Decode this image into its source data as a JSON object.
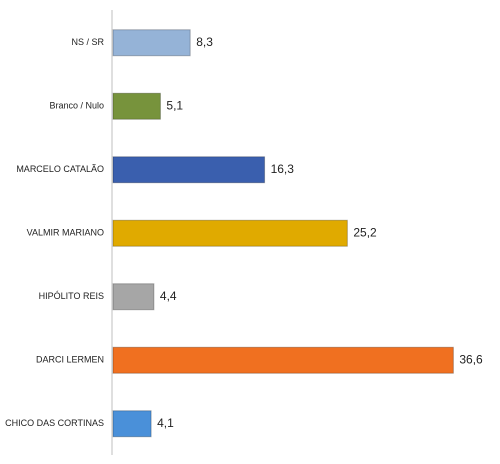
{
  "chart_data": {
    "type": "bar",
    "orientation": "horizontal",
    "categories": [
      "NS / SR",
      "Branco / Nulo",
      "MARCELO CATALÃO",
      "VALMIR MARIANO",
      "HIPÓLITO REIS",
      "DARCI LERMEN",
      "CHICO DAS CORTINAS"
    ],
    "values": [
      8.3,
      5.1,
      16.3,
      25.2,
      4.4,
      36.6,
      4.1
    ],
    "value_labels": [
      "8,3",
      "5,1",
      "16,3",
      "25,2",
      "4,4",
      "36,6",
      "4,1"
    ],
    "colors": [
      "#95b3d7",
      "#77933c",
      "#3a5fae",
      "#e0aa00",
      "#a6a6a6",
      "#f07020",
      "#4a90d9"
    ]
  }
}
